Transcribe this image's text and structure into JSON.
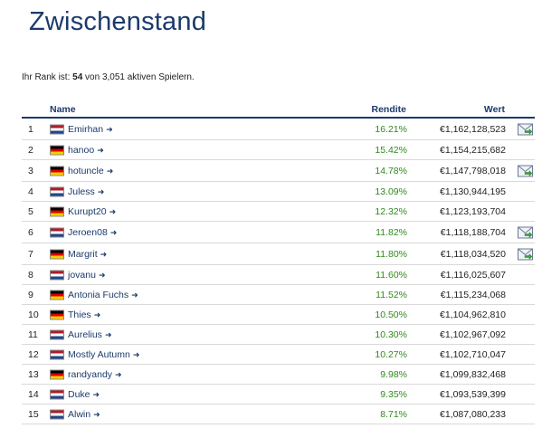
{
  "page": {
    "title": "Zwischenstand",
    "rank_prefix": "Ihr Rank ist: ",
    "rank_value": "54",
    "rank_suffix": " von 3,051 aktiven Spielern."
  },
  "table": {
    "headers": {
      "name": "Name",
      "rendite": "Rendite",
      "wert": "Wert"
    },
    "rows": [
      {
        "rank": "1",
        "flag": "nl",
        "name": "Emirhan",
        "rendite": "16.21%",
        "wert": "€1,162,128,523",
        "mail": true
      },
      {
        "rank": "2",
        "flag": "de",
        "name": "hanoo",
        "rendite": "15.42%",
        "wert": "€1,154,215,682",
        "mail": false
      },
      {
        "rank": "3",
        "flag": "de",
        "name": "hotuncle",
        "rendite": "14.78%",
        "wert": "€1,147,798,018",
        "mail": true
      },
      {
        "rank": "4",
        "flag": "nl",
        "name": "Juless",
        "rendite": "13.09%",
        "wert": "€1,130,944,195",
        "mail": false
      },
      {
        "rank": "5",
        "flag": "de",
        "name": "Kurupt20",
        "rendite": "12.32%",
        "wert": "€1,123,193,704",
        "mail": false
      },
      {
        "rank": "6",
        "flag": "nl",
        "name": "Jeroen08",
        "rendite": "11.82%",
        "wert": "€1,118,188,704",
        "mail": true
      },
      {
        "rank": "7",
        "flag": "de",
        "name": "Margrit",
        "rendite": "11.80%",
        "wert": "€1,118,034,520",
        "mail": true
      },
      {
        "rank": "8",
        "flag": "nl",
        "name": "jovanu",
        "rendite": "11.60%",
        "wert": "€1,116,025,607",
        "mail": false
      },
      {
        "rank": "9",
        "flag": "de",
        "name": "Antonia Fuchs",
        "rendite": "11.52%",
        "wert": "€1,115,234,068",
        "mail": false
      },
      {
        "rank": "10",
        "flag": "de",
        "name": "Thies",
        "rendite": "10.50%",
        "wert": "€1,104,962,810",
        "mail": false
      },
      {
        "rank": "11",
        "flag": "nl",
        "name": "Aurelius",
        "rendite": "10.30%",
        "wert": "€1,102,967,092",
        "mail": false
      },
      {
        "rank": "12",
        "flag": "nl",
        "name": "Mostly Autumn",
        "rendite": "10.27%",
        "wert": "€1,102,710,047",
        "mail": false
      },
      {
        "rank": "13",
        "flag": "de",
        "name": "randyandy",
        "rendite": "9.98%",
        "wert": "€1,099,832,468",
        "mail": false
      },
      {
        "rank": "14",
        "flag": "nl",
        "name": "Duke",
        "rendite": "9.35%",
        "wert": "€1,093,539,399",
        "mail": false
      },
      {
        "rank": "15",
        "flag": "nl",
        "name": "Alwin",
        "rendite": "8.71%",
        "wert": "€1,087,080,233",
        "mail": false
      }
    ]
  },
  "icons": {
    "name_link": "arrow-right-icon",
    "message": "mail-send-icon"
  },
  "colors": {
    "title": "#1b3a6b",
    "header_rule": "#1b3a6b",
    "positive": "#2e8b1a"
  }
}
